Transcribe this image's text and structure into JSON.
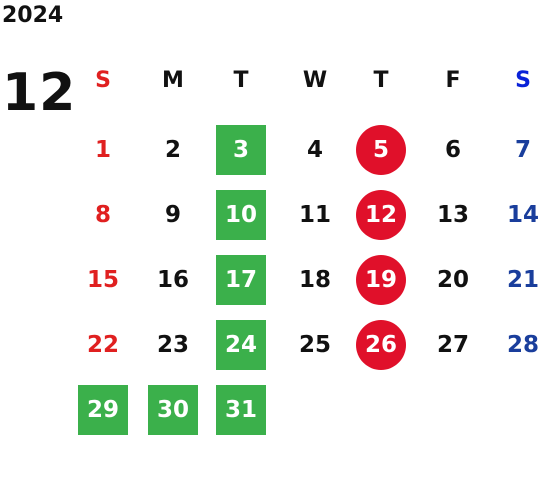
{
  "calendar": {
    "year": "2024",
    "month": "12",
    "weekdays": [
      "S",
      "M",
      "T",
      "W",
      "T",
      "F",
      "S"
    ],
    "colors": {
      "sunday": "#e02020",
      "saturday": "#1a3e9c",
      "saturday_header": "#0a22d8",
      "weekday": "#111111",
      "green_box": "#3bb04b",
      "red_circle": "#e0102a"
    },
    "weeks": [
      [
        "1",
        "2",
        "3",
        "4",
        "5",
        "6",
        "7"
      ],
      [
        "8",
        "9",
        "10",
        "11",
        "12",
        "13",
        "14"
      ],
      [
        "15",
        "16",
        "17",
        "18",
        "19",
        "20",
        "21"
      ],
      [
        "22",
        "23",
        "24",
        "25",
        "26",
        "27",
        "28"
      ],
      [
        "29",
        "30",
        "31",
        "",
        "",
        "",
        ""
      ]
    ],
    "marked_green": [
      "3",
      "10",
      "17",
      "24",
      "29",
      "30",
      "31"
    ],
    "marked_red": [
      "5",
      "12",
      "19",
      "26"
    ]
  }
}
